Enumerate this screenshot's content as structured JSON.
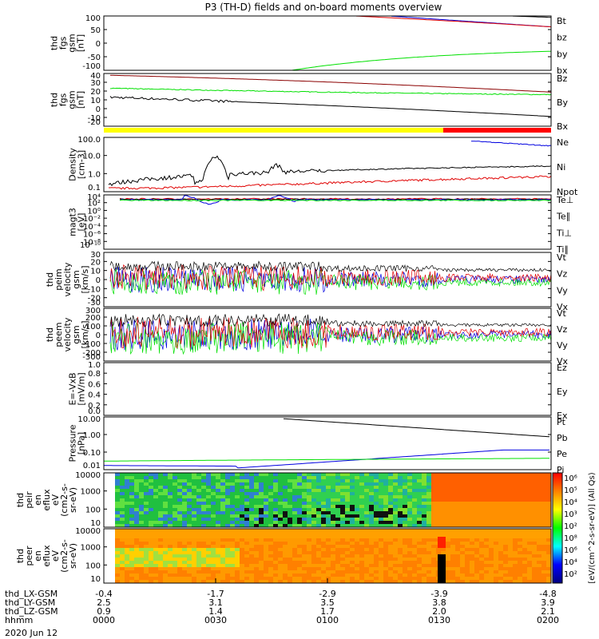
{
  "title": "P3 (TH-D) fields and on-board moments overview",
  "date": "2020 Jun 12",
  "colors": {
    "black": "#000000",
    "red": "#e00000",
    "green": "#00e000",
    "blue": "#0000e0",
    "yellow": "#ffff00",
    "darkred": "#8b0000"
  },
  "panels": [
    {
      "id": "fgs",
      "ylabel": [
        "thd",
        "fgs",
        "gsm",
        "[nT]"
      ],
      "ticks": [
        "100",
        "50",
        "0",
        "-50",
        "-100"
      ],
      "ylim": [
        -100,
        100
      ],
      "legend": [
        {
          "text": "Bt",
          "color": "#000000"
        },
        {
          "text": "bz",
          "color": "#e00000"
        },
        {
          "text": "by",
          "color": "#00e000"
        },
        {
          "text": "bx",
          "color": "#0000e0"
        }
      ]
    },
    {
      "id": "fgs2",
      "ylabel": [
        "thd",
        "fgs",
        "gsm",
        "[nT]"
      ],
      "ticks": [
        "40",
        "30",
        "20",
        "10",
        "0",
        "-10",
        "-20"
      ],
      "ylim": [
        -25,
        40
      ],
      "legend": [
        {
          "text": "Bz",
          "color": "#8b0000"
        },
        {
          "text": "By",
          "color": "#00e000"
        },
        {
          "text": "Bx",
          "color": "#000000"
        }
      ]
    },
    {
      "id": "density",
      "ylabel": [
        "Density",
        "[cm-3]"
      ],
      "ticks": [
        "100.0",
        "10.0",
        "1.0",
        "0.1"
      ],
      "log": true,
      "legend": [
        {
          "text": "Ne",
          "color": "#e00000"
        },
        {
          "text": "Ni",
          "color": "#000000"
        },
        {
          "text": "Npot",
          "color": "#0000e0"
        }
      ]
    },
    {
      "id": "temp",
      "ylabel": [
        "magt3",
        "[eV]"
      ],
      "ticks": [
        "10⁴",
        "10²",
        "10⁰",
        "10⁻²",
        "10⁻⁴",
        "10⁻⁶",
        "10⁻⁸",
        "10⁻¹⁰"
      ],
      "legend": [
        {
          "text": "Te⊥",
          "color": "#e00000"
        },
        {
          "text": "Te∥",
          "color": "#000000"
        },
        {
          "text": "Ti⊥",
          "color": "#0000e0"
        },
        {
          "text": "Ti∥",
          "color": "#00e000"
        }
      ]
    },
    {
      "id": "peim",
      "ylabel": [
        "thd",
        "peim",
        "velocity",
        "gsm",
        "[km/s]"
      ],
      "ticks": [
        "30",
        "20",
        "10",
        "0",
        "-10",
        "-20",
        "-30"
      ],
      "ylim": [
        -30,
        30
      ],
      "legend": [
        {
          "text": "Vt",
          "color": "#000000"
        },
        {
          "text": "Vz",
          "color": "#e00000"
        },
        {
          "text": "Vy",
          "color": "#00e000"
        },
        {
          "text": "Vx",
          "color": "#0000e0"
        }
      ]
    },
    {
      "id": "peem",
      "ylabel": [
        "thd",
        "peem",
        "velocity",
        "gsm",
        "[km/s]"
      ],
      "ticks": [
        "300",
        "200",
        "100",
        "0",
        "-100",
        "-200",
        "-300"
      ],
      "ylim": [
        -300,
        300
      ],
      "legend": [
        {
          "text": "Vt",
          "color": "#000000"
        },
        {
          "text": "Vz",
          "color": "#e00000"
        },
        {
          "text": "Vy",
          "color": "#00e000"
        },
        {
          "text": "Vx",
          "color": "#0000e0"
        }
      ]
    },
    {
      "id": "efield",
      "ylabel": [
        "E=-VxB",
        "[mV/m]"
      ],
      "ticks": [
        "1.0",
        "0.8",
        "0.6",
        "0.4",
        "0.2",
        "0.0"
      ],
      "ylim": [
        0,
        1
      ],
      "legend": [
        {
          "text": "Ez",
          "color": "#e00000"
        },
        {
          "text": "Ey",
          "color": "#00e000"
        },
        {
          "text": "Ex",
          "color": "#0000e0"
        }
      ]
    },
    {
      "id": "pressure",
      "ylabel": [
        "Pressure",
        "[nPa]"
      ],
      "ticks": [
        "10.00",
        "1.00",
        "0.10",
        "0.01"
      ],
      "log": true,
      "legend": [
        {
          "text": "Pt",
          "color": "#000000"
        },
        {
          "text": "Pb",
          "color": "#e00000"
        },
        {
          "text": "Pe",
          "color": "#00e000"
        },
        {
          "text": "Pi",
          "color": "#0000e0"
        }
      ]
    },
    {
      "id": "peir",
      "ylabel": [
        "thd",
        "peir",
        "en",
        "eflux",
        "eV",
        "(cm2-s-",
        "sr-eV)"
      ],
      "ticks": [
        "10000",
        "1000",
        "100",
        "10"
      ],
      "spectro": true
    },
    {
      "id": "peer",
      "ylabel": [
        "thd",
        "peer",
        "en",
        "eflux",
        "eV",
        "(cm2-s-",
        "sr-eV)"
      ],
      "ticks": [
        "10000",
        "1000",
        "100",
        "10"
      ],
      "spectro": true
    }
  ],
  "colorbar": {
    "label": "[eV/(cm^2-s-sr-eV)] (All Qs)",
    "ticks": [
      "10⁶",
      "10⁵",
      "10⁴",
      "10³",
      "10²",
      "10⁸",
      "10⁶",
      "10⁴",
      "10²"
    ]
  },
  "xaxis": {
    "rows": [
      {
        "label": "thd_LX-GSM",
        "values": [
          "-0.4",
          "-1.7",
          "-2.9",
          "-3.9",
          "-4.8"
        ]
      },
      {
        "label": "thd_LY-GSM",
        "values": [
          "2.5",
          "3.1",
          "3.5",
          "3.8",
          "3.9"
        ]
      },
      {
        "label": "thd_LZ-GSM",
        "values": [
          "0.9",
          "1.4",
          "1.7",
          "2.0",
          "2.1"
        ]
      },
      {
        "label": "hhmm",
        "values": [
          "0000",
          "0030",
          "0100",
          "0130",
          "0200"
        ]
      }
    ]
  },
  "chart_data": {
    "type": "line",
    "title": "P3 (TH-D) fields and on-board moments overview",
    "x": [
      "0000",
      "0030",
      "0100",
      "0130",
      "0200"
    ],
    "series": [
      {
        "name": "Bt",
        "values": [
          125,
          115,
          104,
          100,
          94
        ]
      },
      {
        "name": "bz",
        "values": [
          118,
          108,
          96,
          88,
          78
        ]
      },
      {
        "name": "by",
        "values": [
          -140,
          -125,
          -62,
          -35,
          -18
        ]
      },
      {
        "name": "Bz",
        "values": [
          38,
          32,
          29,
          24,
          17
        ]
      },
      {
        "name": "By",
        "values": [
          22,
          15,
          13,
          12,
          12
        ]
      },
      {
        "name": "Bx",
        "values": [
          11,
          2,
          -3,
          -8,
          -13
        ]
      },
      {
        "name": "Ni",
        "values": [
          0.2,
          1.0,
          2.0,
          2.8,
          3.2
        ]
      },
      {
        "name": "Ne",
        "values": [
          0.15,
          0.2,
          0.3,
          0.5,
          0.7
        ]
      },
      {
        "name": "Npot",
        "values": [
          null,
          null,
          null,
          100,
          50
        ]
      },
      {
        "name": "Pt",
        "values": [
          8,
          5,
          3,
          1.5,
          0.8
        ]
      },
      {
        "name": "Pi",
        "values": [
          0.015,
          0.02,
          0.06,
          0.15,
          0.15
        ]
      },
      {
        "name": "Pe",
        "values": [
          0.025,
          0.03,
          0.03,
          0.03,
          0.04
        ]
      }
    ]
  }
}
